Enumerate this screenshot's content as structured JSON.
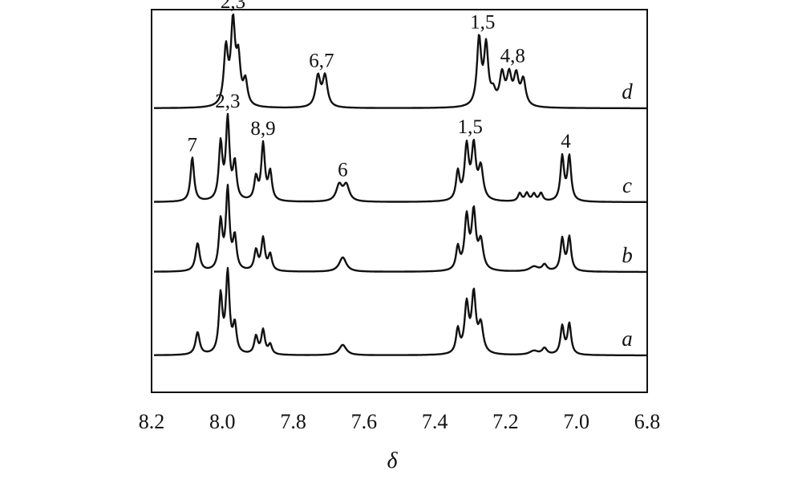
{
  "chart_data": {
    "type": "line",
    "title": "",
    "xlabel": "δ",
    "ylabel": "",
    "xlim": [
      8.2,
      6.8
    ],
    "x_reversed": true,
    "x_ticks": [
      "8.2",
      "8.0",
      "7.8",
      "7.6",
      "7.4",
      "7.2",
      "7.0",
      "6.8"
    ],
    "grid": false,
    "series": [
      {
        "name": "d",
        "baseline_rank": 4,
        "peaks": [
          {
            "x": 7.99,
            "h": 0.7,
            "w": 0.007
          },
          {
            "x": 7.97,
            "h": 1.0,
            "w": 0.007
          },
          {
            "x": 7.955,
            "h": 0.55,
            "w": 0.007
          },
          {
            "x": 7.935,
            "h": 0.3,
            "w": 0.007
          },
          {
            "x": 7.73,
            "h": 0.38,
            "w": 0.008
          },
          {
            "x": 7.71,
            "h": 0.38,
            "w": 0.008
          },
          {
            "x": 7.275,
            "h": 0.83,
            "w": 0.007
          },
          {
            "x": 7.255,
            "h": 0.73,
            "w": 0.007
          },
          {
            "x": 7.235,
            "h": 0.15,
            "w": 0.008
          },
          {
            "x": 7.21,
            "h": 0.38,
            "w": 0.008
          },
          {
            "x": 7.19,
            "h": 0.36,
            "w": 0.008
          },
          {
            "x": 7.17,
            "h": 0.36,
            "w": 0.008
          },
          {
            "x": 7.15,
            "h": 0.32,
            "w": 0.008
          }
        ],
        "labels": [
          {
            "text": "2,3",
            "x": 7.97
          },
          {
            "text": "6,7",
            "x": 7.72
          },
          {
            "text": "1,5",
            "x": 7.265
          },
          {
            "text": "4,8",
            "x": 7.18
          }
        ]
      },
      {
        "name": "c",
        "baseline_rank": 3,
        "peaks": [
          {
            "x": 8.085,
            "h": 0.55,
            "w": 0.006
          },
          {
            "x": 8.005,
            "h": 0.7,
            "w": 0.006
          },
          {
            "x": 7.985,
            "h": 1.0,
            "w": 0.006
          },
          {
            "x": 7.965,
            "h": 0.45,
            "w": 0.006
          },
          {
            "x": 7.905,
            "h": 0.28,
            "w": 0.006
          },
          {
            "x": 7.885,
            "h": 0.7,
            "w": 0.006
          },
          {
            "x": 7.865,
            "h": 0.35,
            "w": 0.006
          },
          {
            "x": 7.67,
            "h": 0.2,
            "w": 0.01
          },
          {
            "x": 7.65,
            "h": 0.2,
            "w": 0.01
          },
          {
            "x": 7.335,
            "h": 0.35,
            "w": 0.006
          },
          {
            "x": 7.31,
            "h": 0.66,
            "w": 0.007
          },
          {
            "x": 7.29,
            "h": 0.65,
            "w": 0.007
          },
          {
            "x": 7.27,
            "h": 0.4,
            "w": 0.008
          },
          {
            "x": 7.16,
            "h": 0.1,
            "w": 0.006
          },
          {
            "x": 7.14,
            "h": 0.1,
            "w": 0.006
          },
          {
            "x": 7.12,
            "h": 0.09,
            "w": 0.006
          },
          {
            "x": 7.1,
            "h": 0.1,
            "w": 0.006
          },
          {
            "x": 7.04,
            "h": 0.55,
            "w": 0.006
          },
          {
            "x": 7.02,
            "h": 0.55,
            "w": 0.006
          }
        ],
        "labels": [
          {
            "text": "7",
            "x": 8.085
          },
          {
            "text": "2,3",
            "x": 7.985
          },
          {
            "text": "8,9",
            "x": 7.885
          },
          {
            "text": "6",
            "x": 7.66
          },
          {
            "text": "1,5",
            "x": 7.3
          },
          {
            "text": "4",
            "x": 7.03
          }
        ]
      },
      {
        "name": "b",
        "baseline_rank": 2,
        "peaks": [
          {
            "x": 8.07,
            "h": 0.35,
            "w": 0.007
          },
          {
            "x": 8.005,
            "h": 0.6,
            "w": 0.006
          },
          {
            "x": 7.985,
            "h": 1.0,
            "w": 0.006
          },
          {
            "x": 7.965,
            "h": 0.4,
            "w": 0.006
          },
          {
            "x": 7.905,
            "h": 0.25,
            "w": 0.006
          },
          {
            "x": 7.885,
            "h": 0.4,
            "w": 0.006
          },
          {
            "x": 7.865,
            "h": 0.2,
            "w": 0.006
          },
          {
            "x": 7.66,
            "h": 0.18,
            "w": 0.012
          },
          {
            "x": 7.335,
            "h": 0.28,
            "w": 0.006
          },
          {
            "x": 7.31,
            "h": 0.65,
            "w": 0.007
          },
          {
            "x": 7.29,
            "h": 0.7,
            "w": 0.007
          },
          {
            "x": 7.27,
            "h": 0.35,
            "w": 0.008
          },
          {
            "x": 7.12,
            "h": 0.06,
            "w": 0.015
          },
          {
            "x": 7.09,
            "h": 0.08,
            "w": 0.008
          },
          {
            "x": 7.04,
            "h": 0.4,
            "w": 0.006
          },
          {
            "x": 7.02,
            "h": 0.42,
            "w": 0.006
          }
        ],
        "labels": []
      },
      {
        "name": "a",
        "baseline_rank": 1,
        "peaks": [
          {
            "x": 8.07,
            "h": 0.28,
            "w": 0.007
          },
          {
            "x": 8.005,
            "h": 0.72,
            "w": 0.006
          },
          {
            "x": 7.985,
            "h": 1.0,
            "w": 0.006
          },
          {
            "x": 7.965,
            "h": 0.35,
            "w": 0.006
          },
          {
            "x": 7.905,
            "h": 0.22,
            "w": 0.006
          },
          {
            "x": 7.885,
            "h": 0.3,
            "w": 0.006
          },
          {
            "x": 7.865,
            "h": 0.12,
            "w": 0.006
          },
          {
            "x": 7.66,
            "h": 0.13,
            "w": 0.012
          },
          {
            "x": 7.335,
            "h": 0.3,
            "w": 0.006
          },
          {
            "x": 7.31,
            "h": 0.6,
            "w": 0.007
          },
          {
            "x": 7.29,
            "h": 0.72,
            "w": 0.007
          },
          {
            "x": 7.27,
            "h": 0.35,
            "w": 0.008
          },
          {
            "x": 7.12,
            "h": 0.05,
            "w": 0.015
          },
          {
            "x": 7.09,
            "h": 0.08,
            "w": 0.008
          },
          {
            "x": 7.04,
            "h": 0.35,
            "w": 0.006
          },
          {
            "x": 7.02,
            "h": 0.38,
            "w": 0.006
          }
        ],
        "labels": []
      }
    ]
  }
}
